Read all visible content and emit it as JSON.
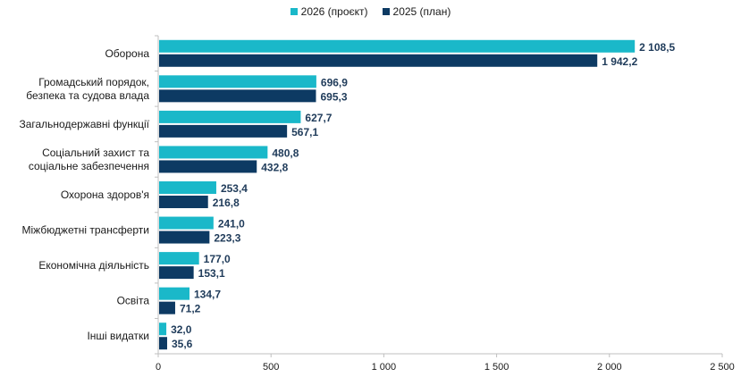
{
  "chart_data": {
    "type": "bar",
    "orientation": "horizontal",
    "categories": [
      [
        "Оборона"
      ],
      [
        "Громадський порядок,",
        "безпека та судова влада"
      ],
      [
        "Загальнодержавні функції"
      ],
      [
        "Соціальний захист та",
        "соціальне забезпечення"
      ],
      [
        "Охорона здоров'я"
      ],
      [
        "Міжбюджетні трансферти"
      ],
      [
        "Економічна діяльність"
      ],
      [
        "Освіта"
      ],
      [
        "Інші видатки"
      ]
    ],
    "series": [
      {
        "name": "2026 (проєкт)",
        "color": "#1ab8c9",
        "values": [
          2108.5,
          696.9,
          627.7,
          480.8,
          253.4,
          241.0,
          177.0,
          134.7,
          32.0
        ],
        "labels": [
          "2 108,5",
          "696,9",
          "627,7",
          "480,8",
          "253,4",
          "241,0",
          "177,0",
          "134,7",
          "32,0"
        ]
      },
      {
        "name": "2025 (план)",
        "color": "#0d3a63",
        "values": [
          1942.2,
          695.3,
          567.1,
          432.8,
          216.8,
          223.3,
          153.1,
          71.2,
          35.6
        ],
        "labels": [
          "1 942,2",
          "695,3",
          "567,1",
          "432,8",
          "216,8",
          "223,3",
          "153,1",
          "71,2",
          "35,6"
        ]
      }
    ],
    "xlim": [
      0,
      2500
    ],
    "xticks": [
      0,
      500,
      1000,
      1500,
      2000,
      2500
    ],
    "xtick_labels": [
      "0",
      "500",
      "1 000",
      "1 500",
      "2 000",
      "2 500"
    ],
    "legend_position": "top-center",
    "grid": false
  }
}
